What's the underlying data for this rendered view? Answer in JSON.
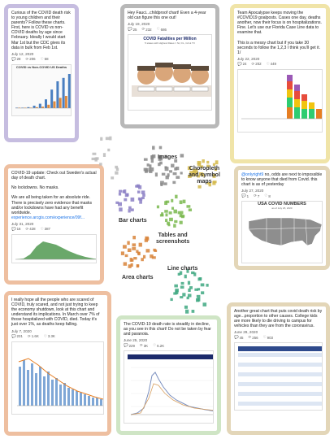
{
  "colors": {
    "purple": "#c6bde0",
    "gray": "#b8b8b8",
    "yellow": "#f0e4a8",
    "orange": "#eebfa0",
    "green": "#cfe5c5",
    "teal": "#bfe0d2",
    "tan": "#e3d6b8"
  },
  "cards": {
    "c1": {
      "text": "Curious of the COVID death risk to young children and their parents? Follow these charts. First, here is COVID vs non-COVID deaths by age since February. Ideally I would start Mar 1st but the CDC gives its data in bulk from Feb 1st.",
      "date": "July 12, 2020",
      "stats": [
        "28",
        "206",
        "58"
      ],
      "chart_title": "COVID vs Non-COVID US Deaths"
    },
    "c2": {
      "text": "Hey Fauci...childproof chart! Even a 4-year old can figure this one out!",
      "date": "July 19, 2020",
      "stats": [
        "25",
        "232",
        "686"
      ],
      "chart_title": "COVID Fatalities per Million",
      "chart_sub": "5 states with Highest Rates = NJ, FL, CA & TX"
    },
    "c3": {
      "text": "Team Apocalypse keeps moving the #COVID19 goalposts. Cases one day, deaths another, now their focus is on hospitalizations. Fine. Let's use our Florida Case Line data to examine that.\n\nThis is a messy chart but if you take 30 seconds to follow the 1,2,3 I think you'll get it. 1/",
      "date": "July 22, 2020",
      "stats": [
        "24",
        "202",
        "449"
      ]
    },
    "c4": {
      "text": "COVID-19 update: Check out Sweden's actual day of death chart.\n\nNo lockdowns. No masks.\n\nWe are all being taken for an absolute ride. There is precisely zero evidence that masks and/or lockdowns have had any benefit worldwide.",
      "link": "experience.arcgis.com/experience/09f...",
      "date": "July 31, 2020",
      "stats": [
        "16",
        "428",
        "387"
      ]
    },
    "c5": {
      "handle": "@onlyright9",
      "text": " no, odds are next to impossible to know anyone that died from Covid. this chart is as of yesterday",
      "date": "July 27, 2020",
      "stats": [
        "1",
        "7",
        "8"
      ],
      "map_title": "USA COVID NUMBERS",
      "map_sub": "as of July 26, 2020"
    },
    "c6": {
      "text": "I really hope all the people who are scared of COVID, truly scared, and not just trying to keep the economy shutdown, look at this chart and understand its implications. In March over 7% of those hospitalized with COVID, died. Today it's just over 1%, as deaths keep falling.",
      "date": "July 7, 2020",
      "stats": [
        "231",
        "1.6K",
        "3.3K"
      ]
    },
    "c7": {
      "text": "The COVID-19 death rate is steadily in decline, as you see in this chart! Do not be taken by fear and paranoia.",
      "date": "June 25, 2020",
      "stats": [
        "229",
        "3K",
        "6.2K"
      ]
    },
    "c8": {
      "text": "Another great chart that puts covid death risk by age...proportion to other causes. College kids are more likely to die driving to campus for vehicles than they are from the coronavirus.",
      "date": "June 29, 2020",
      "stats": [
        "45",
        "256",
        "903"
      ]
    }
  },
  "clusters": {
    "images": "Images",
    "choropleth": "Choropleth\nand symbol\nmaps",
    "bar": "Bar charts",
    "tables": "Tables and\nscreenshots",
    "area": "Area charts",
    "line": "Line charts"
  },
  "chart_data": [
    {
      "type": "bar",
      "categories": [
        "0-4",
        "5-14",
        "15-24",
        "25-34",
        "35-44",
        "45-54",
        "55-64",
        "65-74",
        "75-84",
        "85+"
      ],
      "series": [
        {
          "values": [
            1,
            1,
            2,
            5,
            9,
            18,
            38,
            55,
            62,
            70
          ]
        },
        {
          "values": [
            1,
            1,
            1,
            2,
            3,
            7,
            14,
            21,
            25,
            30
          ]
        }
      ]
    }
  ]
}
